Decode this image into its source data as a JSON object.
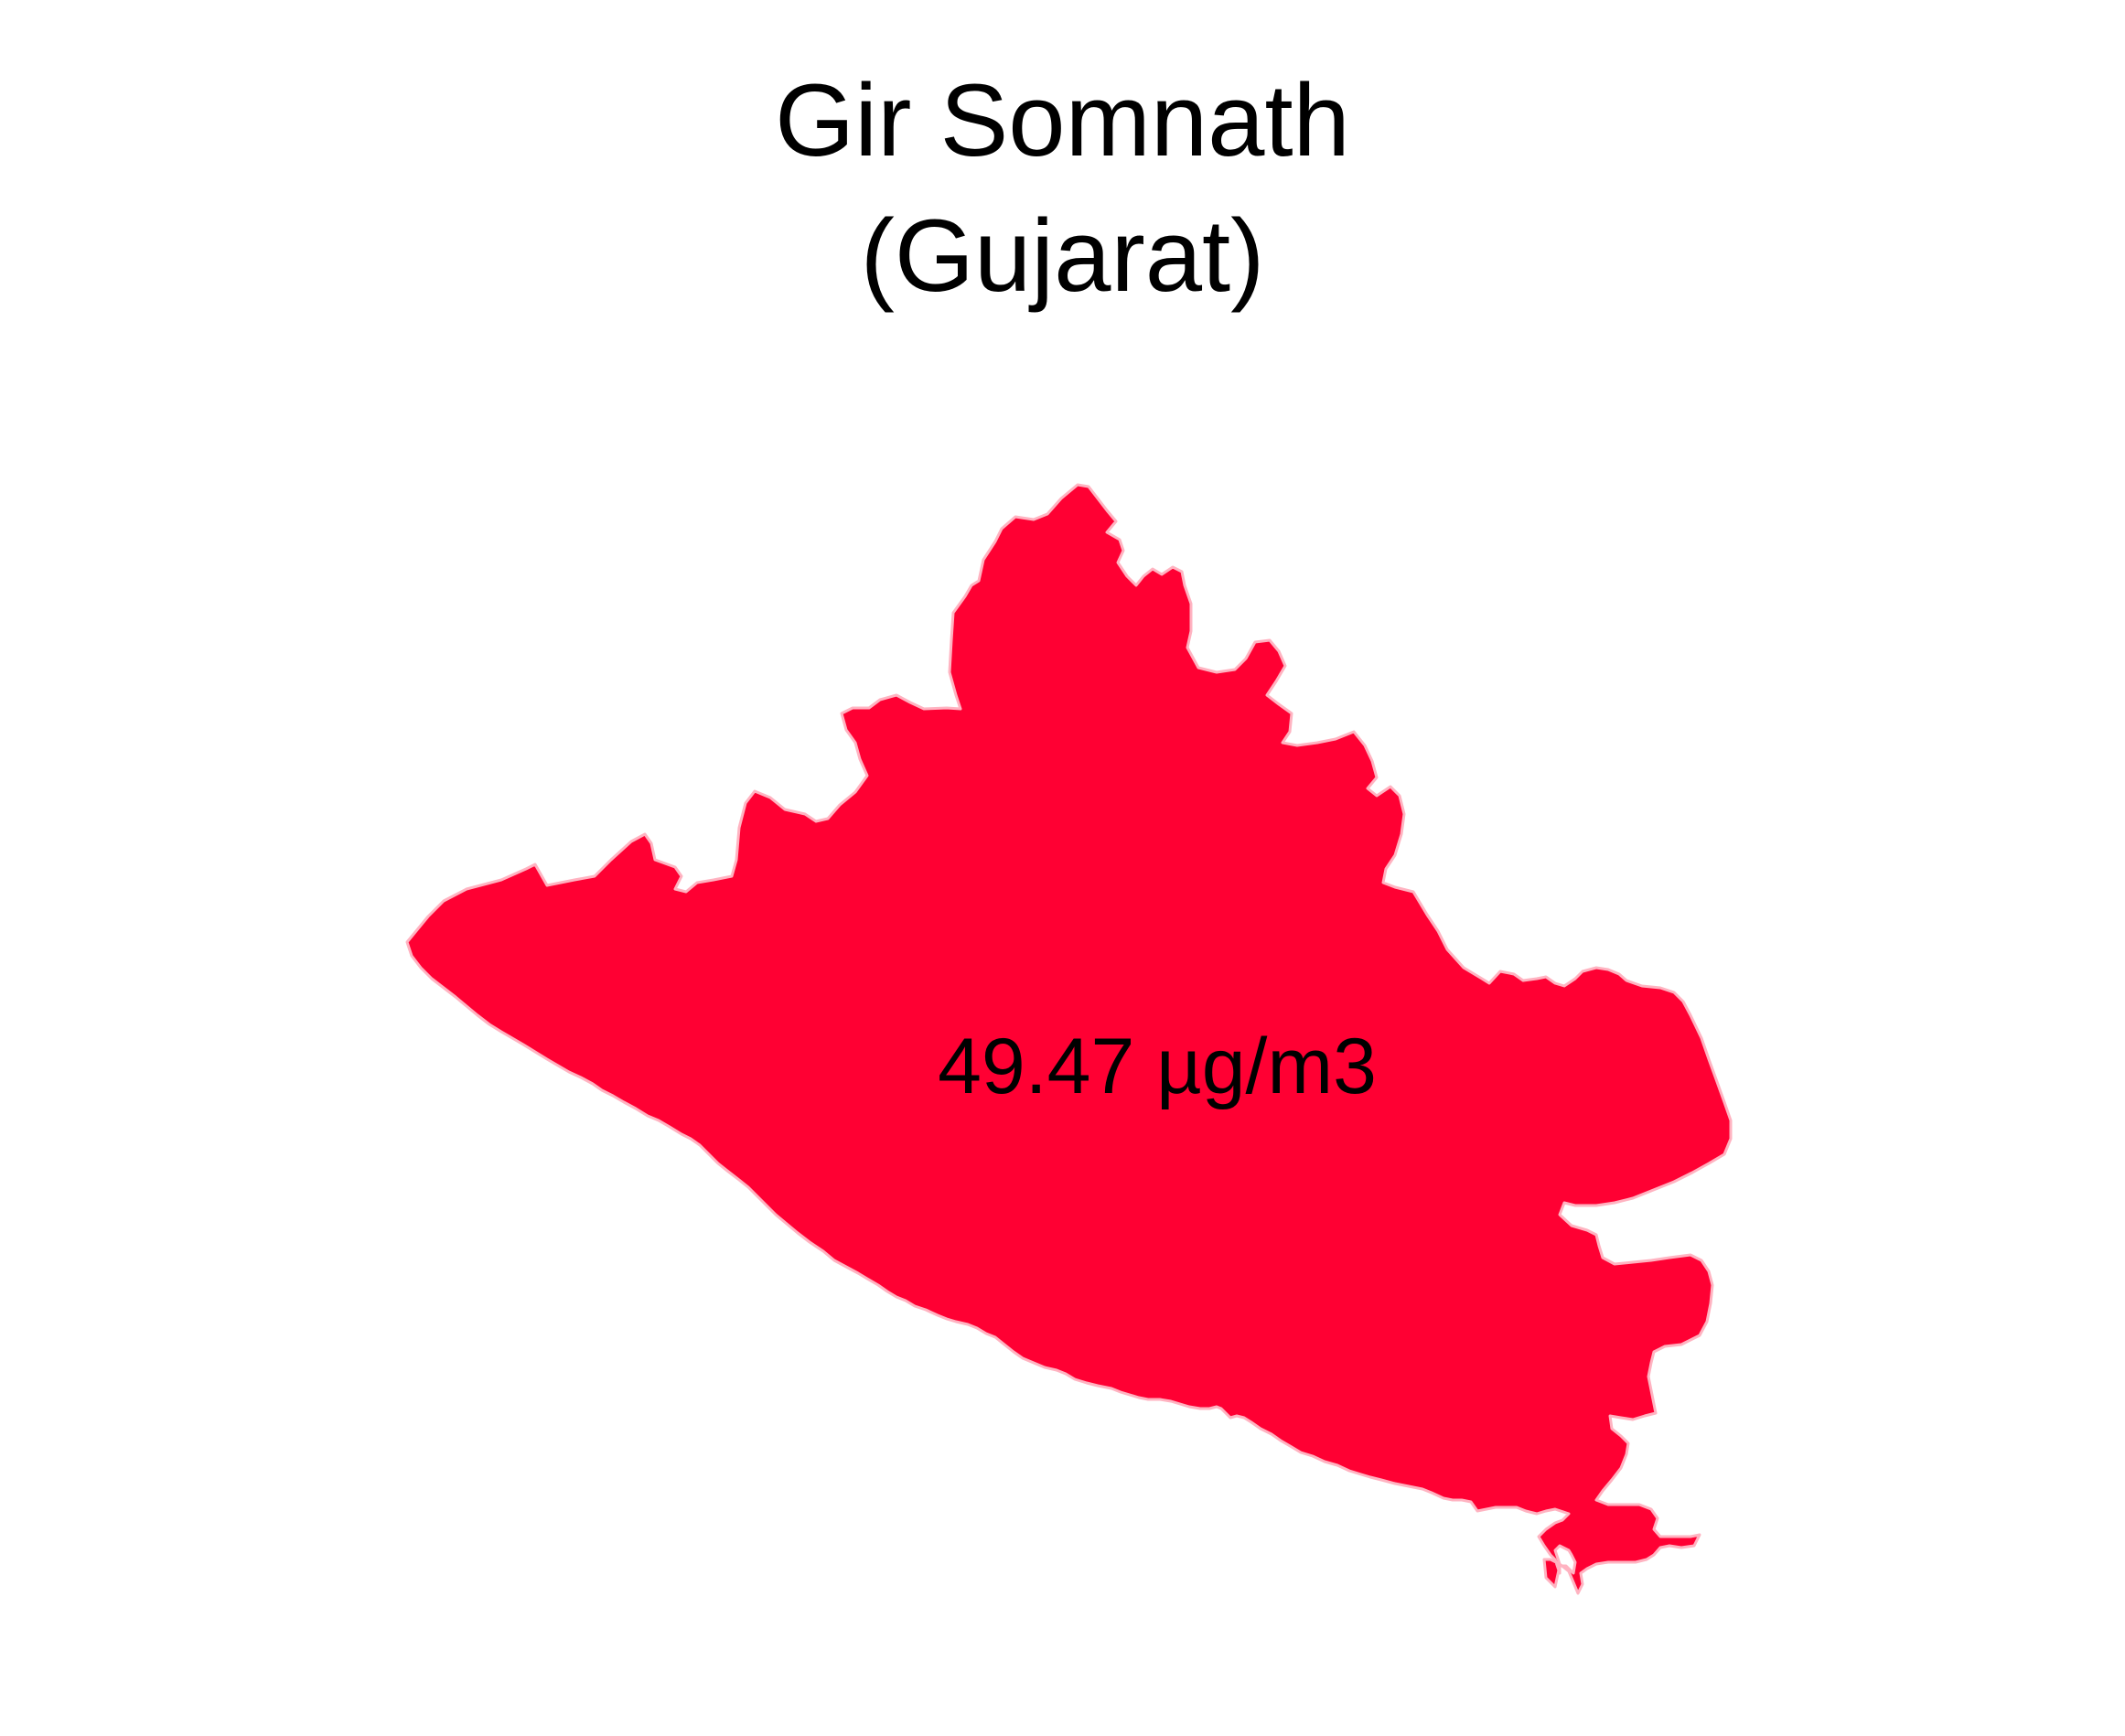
{
  "title": {
    "district": "Gir Somnath",
    "state": "(Gujarat)"
  },
  "map": {
    "region_label": "49.47 µg/m3",
    "fill_color": "#ff0033",
    "stroke_color": "#ffb3c1",
    "background_color": "#ffffff"
  }
}
